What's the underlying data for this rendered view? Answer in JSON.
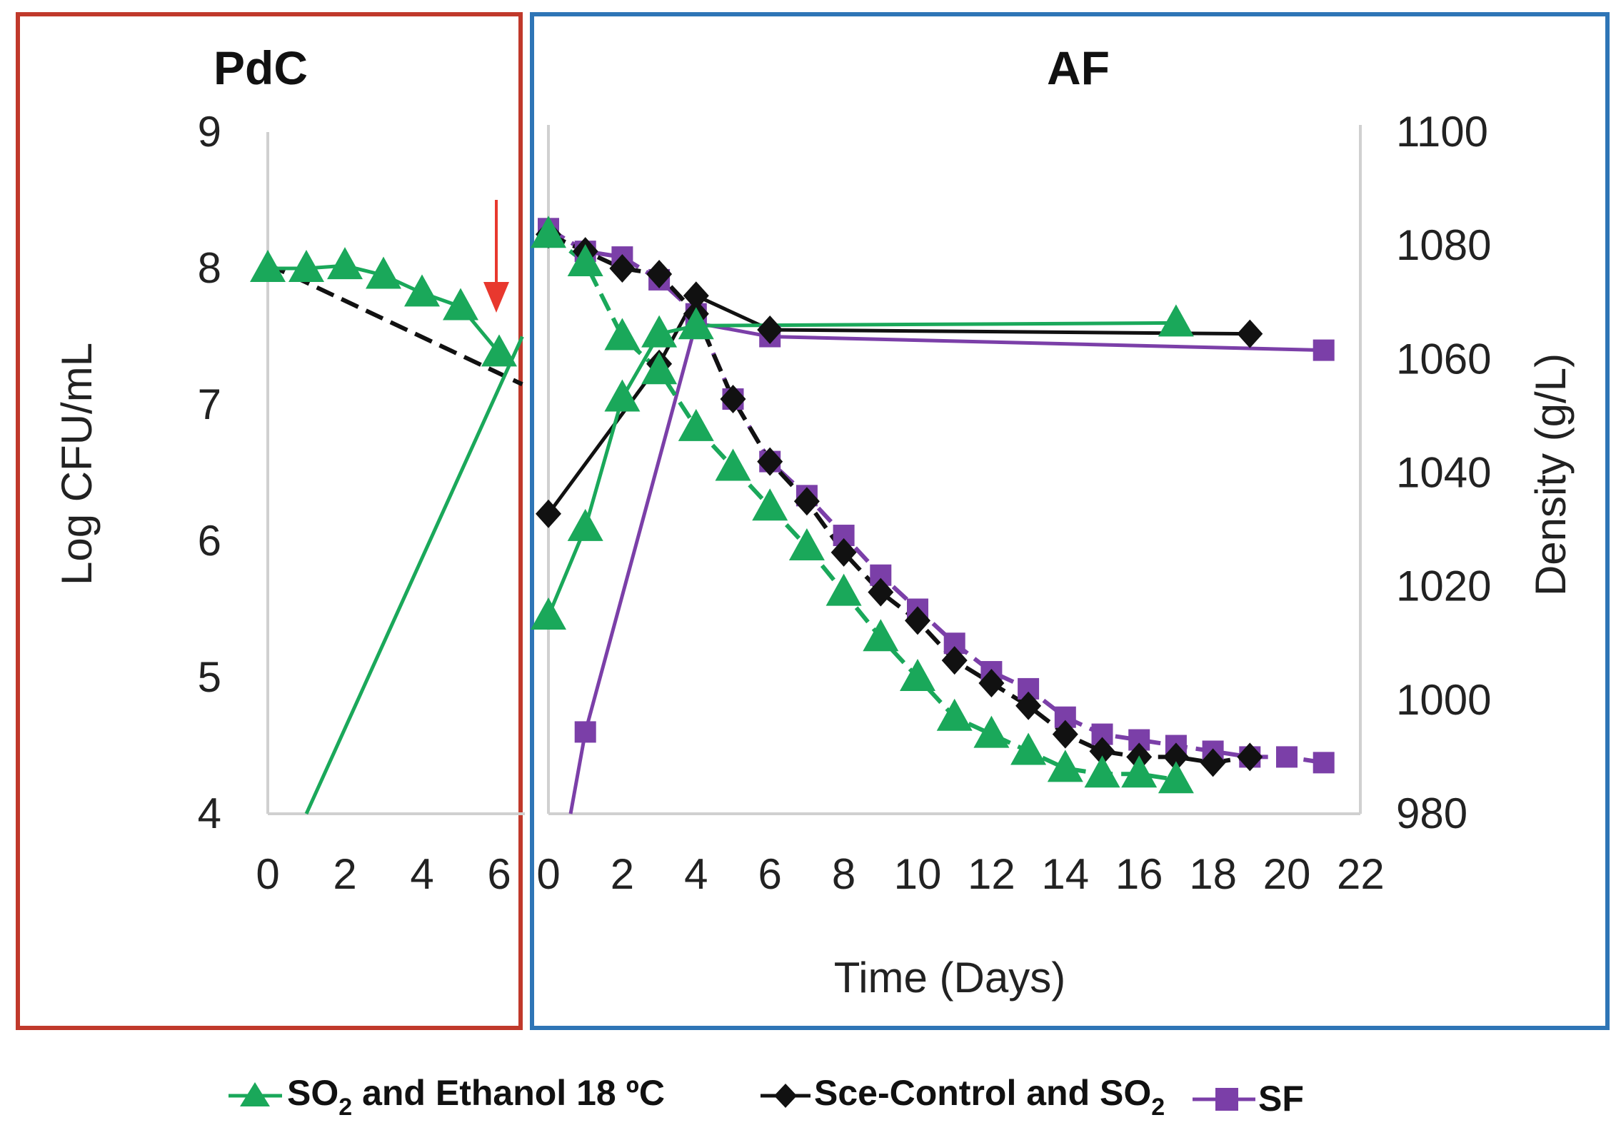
{
  "chart_data": {
    "type": "line",
    "panels": [
      {
        "title": "PdC",
        "x_ticks": [
          "0",
          "2",
          "4",
          "6"
        ],
        "xlim": [
          0,
          6.6
        ]
      },
      {
        "title": "AF",
        "x_ticks": [
          "0",
          "2",
          "4",
          "6",
          "8",
          "10",
          "12",
          "14",
          "16",
          "18",
          "20",
          "22"
        ],
        "xlim": [
          0,
          22
        ]
      }
    ],
    "xlabel": "Time (Days)",
    "ylabel_left": "Log CFU/mL",
    "ylabel_right": "Density (g/L)",
    "ylim_left": [
      4,
      9
    ],
    "ylim_right": [
      980,
      1100
    ],
    "y_ticks_left": [
      "4",
      "5",
      "6",
      "7",
      "8",
      "9"
    ],
    "y_ticks_right": [
      "980",
      "1000",
      "1020",
      "1040",
      "1060",
      "1080",
      "1100"
    ],
    "annotation": "red arrow at PdC day 6 (transition to AF)",
    "series": [
      {
        "name": "SO2 and Ethanol 18 ºC",
        "legend_main": "SO",
        "legend_sub": "2",
        "legend_rest": " and Ethanol 18 ºC",
        "color": "#1aa85a",
        "marker": "triangle",
        "pdc_log_cfu": {
          "x": [
            0,
            1,
            2,
            3,
            4,
            5,
            6
          ],
          "y": [
            8.0,
            8.0,
            8.02,
            7.95,
            7.82,
            7.72,
            7.38
          ]
        },
        "pdc_growth_log_cfu": {
          "x": [
            1,
            6.6
          ],
          "y": [
            4.0,
            7.5
          ]
        },
        "af_log_cfu": {
          "x": [
            0,
            1,
            2,
            3,
            4,
            17
          ],
          "y": [
            5.45,
            6.1,
            7.05,
            7.52,
            7.58,
            7.6
          ]
        },
        "af_density": {
          "x": [
            0,
            1,
            2,
            3,
            4,
            5,
            6,
            7,
            8,
            9,
            10,
            11,
            12,
            13,
            14,
            15,
            16,
            17
          ],
          "y": [
            1082,
            1077,
            1064,
            1058,
            1048,
            1041,
            1034,
            1027,
            1019,
            1011,
            1004,
            997,
            994,
            991,
            988,
            987,
            987,
            986
          ]
        }
      },
      {
        "name": "Sce-Control and SO2",
        "legend_main": "Sce-Control and SO",
        "legend_sub": "2",
        "legend_rest": "",
        "color": "#111111",
        "marker": "diamond",
        "pdc_log_cfu": {
          "x": [
            0,
            6.6
          ],
          "y": [
            8.03,
            7.15
          ]
        },
        "af_log_cfu": {
          "x": [
            0,
            3,
            4,
            6,
            19
          ],
          "y": [
            6.2,
            7.3,
            7.8,
            7.55,
            7.52
          ]
        },
        "af_density": {
          "x": [
            0,
            1,
            2,
            3,
            4,
            5,
            6,
            7,
            8,
            9,
            10,
            11,
            12,
            13,
            14,
            15,
            16,
            17,
            18,
            19
          ],
          "y": [
            1082,
            1079,
            1076,
            1075,
            1068,
            1053,
            1042,
            1035,
            1026,
            1019,
            1014,
            1007,
            1003,
            999,
            994,
            991,
            990,
            990,
            989,
            990
          ]
        }
      },
      {
        "name": "SF",
        "legend_main": "SF",
        "legend_sub": "",
        "legend_rest": "",
        "color": "#7b3fa8",
        "marker": "square",
        "af_log_cfu": {
          "x": [
            0.6,
            1,
            4,
            6,
            21
          ],
          "y": [
            4.0,
            4.6,
            7.6,
            7.5,
            7.4
          ]
        },
        "af_density": {
          "x": [
            0,
            1,
            2,
            3,
            4,
            5,
            6,
            7,
            8,
            9,
            10,
            11,
            12,
            13,
            14,
            15,
            16,
            17,
            18,
            19,
            20,
            21
          ],
          "y": [
            1083,
            1079,
            1078,
            1074,
            1068,
            1053,
            1042,
            1036,
            1029,
            1022,
            1016,
            1010,
            1005,
            1002,
            997,
            994,
            993,
            992,
            991,
            990,
            990,
            989
          ]
        }
      }
    ]
  }
}
